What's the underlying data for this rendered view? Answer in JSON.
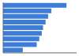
{
  "chart_data": {
    "type": "bar",
    "orientation": "horizontal",
    "categories": [
      null,
      null,
      null,
      null,
      null,
      null,
      null,
      null,
      null
    ],
    "values": [
      5.0,
      3.8,
      3.55,
      3.35,
      3.15,
      3.05,
      2.85,
      2.65,
      1.55
    ],
    "color": "#3d7dd8",
    "xlim": [
      0,
      5.8
    ],
    "tick_labels": false
  }
}
